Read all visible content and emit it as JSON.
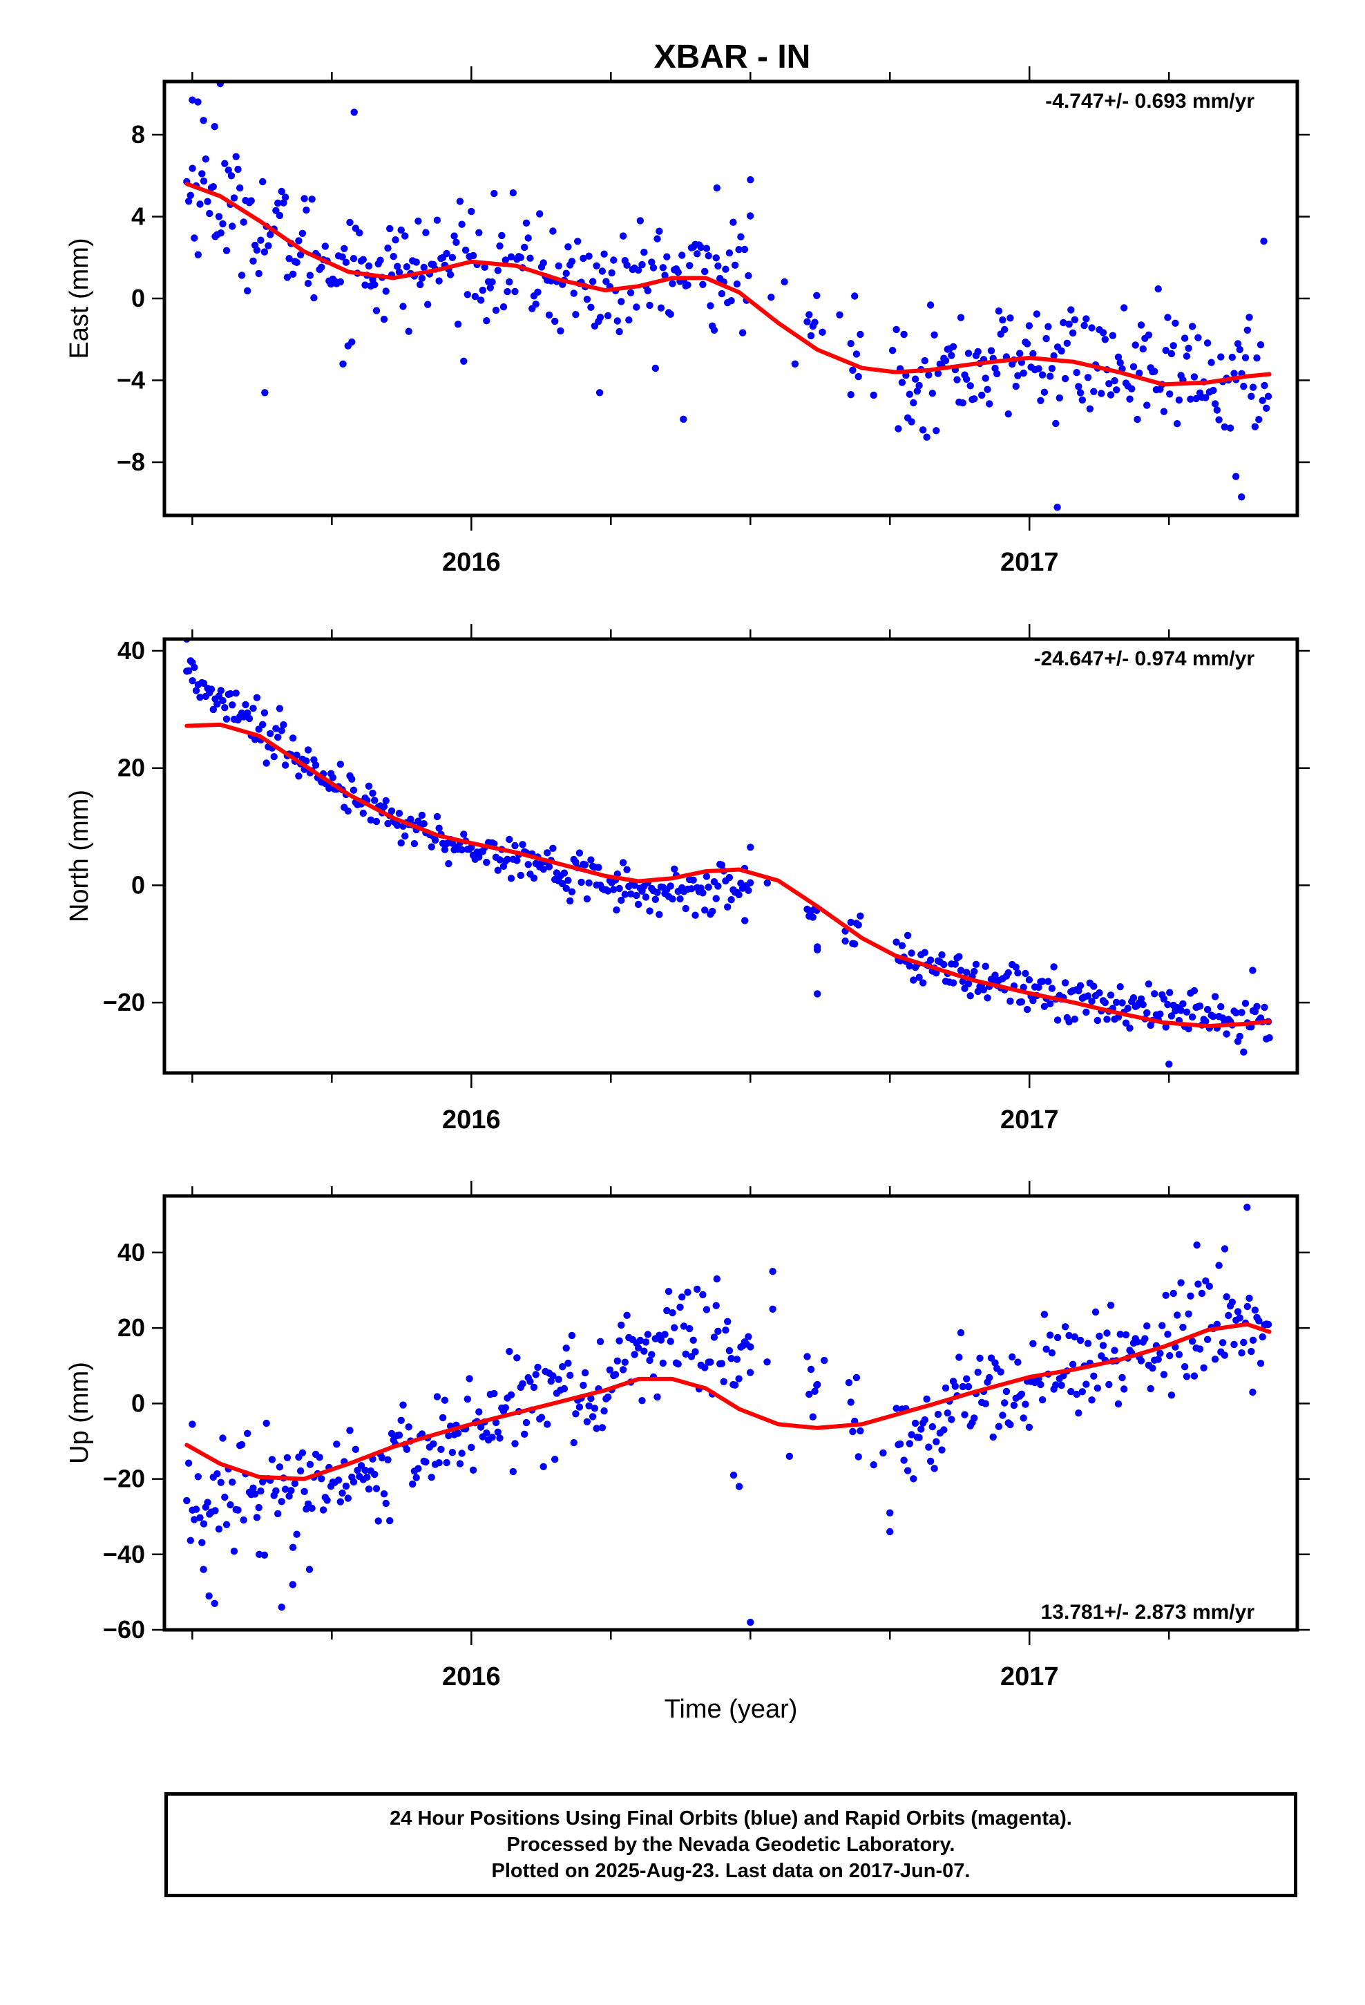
{
  "title": "XBAR - IN",
  "xlabel": "Time (year)",
  "colors": {
    "points": "#0000ff",
    "fit": "#ff0000",
    "frame": "#000000"
  },
  "x_ticks": [
    "2016",
    "2017"
  ],
  "chart_data": [
    {
      "type": "scatter",
      "ylabel": "East (mm)",
      "rate_label": "-4.747+/- 0.693 mm/yr",
      "ylim": [
        -10.6,
        10.6
      ],
      "xlim": [
        2015.45,
        2017.48
      ],
      "yticks": [
        -8,
        -4,
        0,
        4,
        8
      ],
      "ytick_labels": [
        "−8",
        "−4",
        "0",
        "4",
        "8"
      ],
      "x_ticks_years": [
        2016,
        2017
      ],
      "fit": {
        "x": [
          2015.49,
          2015.55,
          2015.62,
          2015.7,
          2015.78,
          2015.86,
          2015.94,
          2016.0,
          2016.08,
          2016.16,
          2016.24,
          2016.3,
          2016.36,
          2016.42,
          2016.48,
          2016.55,
          2016.62,
          2016.7,
          2016.76,
          2016.82,
          2016.9,
          2017.0,
          2017.08,
          2017.16,
          2017.24,
          2017.32,
          2017.39,
          2017.43
        ],
        "y": [
          5.6,
          5.0,
          3.8,
          2.3,
          1.3,
          1.0,
          1.4,
          1.8,
          1.6,
          0.9,
          0.4,
          0.6,
          1.0,
          1.0,
          0.3,
          -1.2,
          -2.5,
          -3.4,
          -3.6,
          -3.5,
          -3.2,
          -2.9,
          -3.1,
          -3.6,
          -4.2,
          -4.1,
          -3.8,
          -3.7
        ]
      },
      "series": {
        "name": "Final Orbits",
        "baseline_x": [
          2015.49,
          2015.62,
          2015.75,
          2015.88,
          2016.0,
          2016.12,
          2016.24,
          2016.36,
          2016.45,
          2016.55,
          2016.65,
          2016.75,
          2016.85,
          2016.95,
          2017.05,
          2017.15,
          2017.25,
          2017.35,
          2017.43
        ],
        "baseline_y": [
          5.4,
          3.6,
          1.8,
          1.3,
          1.9,
          1.3,
          0.5,
          1.0,
          1.4,
          0.4,
          -1.8,
          -3.5,
          -3.6,
          -3.1,
          -2.9,
          -3.3,
          -3.8,
          -4.1,
          -3.8
        ],
        "spread": 1.4,
        "gaps": [
          [
            2016.5,
            2016.6
          ],
          [
            2016.62,
            2016.68
          ],
          [
            2016.7,
            2016.76
          ]
        ],
        "outliers": [
          [
            2015.5,
            9.7
          ],
          [
            2015.51,
            9.6
          ],
          [
            2015.52,
            8.7
          ],
          [
            2015.54,
            8.4
          ],
          [
            2015.55,
            10.5
          ],
          [
            2015.57,
            6.0
          ],
          [
            2015.63,
            -4.6
          ],
          [
            2015.77,
            -3.2
          ],
          [
            2015.79,
            9.1
          ],
          [
            2016.23,
            -4.6
          ],
          [
            2016.38,
            -5.9
          ],
          [
            2016.44,
            5.4
          ],
          [
            2016.5,
            5.8
          ],
          [
            2016.68,
            -4.7
          ],
          [
            2017.05,
            -10.2
          ],
          [
            2017.38,
            -9.7
          ],
          [
            2017.37,
            -8.7
          ],
          [
            2017.42,
            2.8
          ],
          [
            2016.58,
            -3.2
          ],
          [
            2016.66,
            -0.8
          ]
        ]
      }
    },
    {
      "type": "scatter",
      "ylabel": "North (mm)",
      "rate_label": "-24.647+/- 0.974 mm/yr",
      "ylim": [
        -32,
        42
      ],
      "xlim": [
        2015.45,
        2017.48
      ],
      "yticks": [
        -20,
        0,
        20,
        40
      ],
      "ytick_labels": [
        "−20",
        "0",
        "20",
        "40"
      ],
      "x_ticks_years": [
        2016,
        2017
      ],
      "fit": {
        "x": [
          2015.49,
          2015.55,
          2015.62,
          2015.7,
          2015.78,
          2015.86,
          2015.94,
          2016.0,
          2016.08,
          2016.16,
          2016.24,
          2016.3,
          2016.36,
          2016.42,
          2016.48,
          2016.55,
          2016.62,
          2016.7,
          2016.76,
          2016.82,
          2016.9,
          2017.0,
          2017.08,
          2017.16,
          2017.24,
          2017.32,
          2017.39,
          2017.43
        ],
        "y": [
          27.2,
          27.4,
          25.5,
          20.5,
          15.5,
          11.5,
          8.5,
          7.2,
          5.6,
          3.6,
          1.6,
          0.7,
          1.2,
          2.4,
          2.7,
          0.8,
          -3.6,
          -9.0,
          -12.0,
          -13.8,
          -16.2,
          -18.4,
          -20.0,
          -21.8,
          -23.4,
          -24.0,
          -23.6,
          -23.2
        ]
      },
      "series": {
        "name": "Final Orbits",
        "baseline_x": [
          2015.49,
          2015.55,
          2015.62,
          2015.7,
          2015.78,
          2015.86,
          2015.94,
          2016.0,
          2016.08,
          2016.16,
          2016.24,
          2016.3,
          2016.36,
          2016.42,
          2016.5,
          2016.75,
          2016.85,
          2016.95,
          2017.05,
          2017.15,
          2017.25,
          2017.35,
          2017.43
        ],
        "baseline_y": [
          36.0,
          32.5,
          27.5,
          20.5,
          15.5,
          11.5,
          8.5,
          6.8,
          4.6,
          2.4,
          0.6,
          -1.2,
          -1.5,
          -1.0,
          -1.0,
          -10.5,
          -14.0,
          -16.8,
          -19.0,
          -20.4,
          -21.3,
          -22.4,
          -23.0
        ],
        "spread": 1.9,
        "gaps": [
          [
            2016.5,
            2016.6
          ],
          [
            2016.62,
            2016.68
          ],
          [
            2016.7,
            2016.76
          ]
        ],
        "outliers": [
          [
            2015.49,
            42.0
          ],
          [
            2015.5,
            38.0
          ],
          [
            2016.5,
            6.5
          ],
          [
            2016.49,
            -6.0
          ],
          [
            2016.62,
            -10.5
          ],
          [
            2016.62,
            -18.5
          ],
          [
            2016.62,
            -11.0
          ],
          [
            2016.67,
            -7.8
          ],
          [
            2016.67,
            -9.5
          ],
          [
            2017.25,
            -30.5
          ],
          [
            2017.4,
            -14.5
          ],
          [
            2017.43,
            -26.0
          ],
          [
            2016.26,
            -4.2
          ]
        ]
      }
    },
    {
      "type": "scatter",
      "ylabel": "Up (mm)",
      "rate_label": "13.781+/- 2.873 mm/yr",
      "ylim": [
        -60,
        55
      ],
      "xlim": [
        2015.45,
        2017.48
      ],
      "yticks": [
        -60,
        -40,
        -20,
        0,
        20,
        40
      ],
      "ytick_labels": [
        "−60",
        "−40",
        "−20",
        "0",
        "20",
        "40"
      ],
      "x_ticks_years": [
        2016,
        2017
      ],
      "fit": {
        "x": [
          2015.49,
          2015.55,
          2015.62,
          2015.7,
          2015.78,
          2015.86,
          2015.94,
          2016.0,
          2016.08,
          2016.16,
          2016.24,
          2016.3,
          2016.36,
          2016.42,
          2016.48,
          2016.55,
          2016.62,
          2016.7,
          2016.76,
          2016.82,
          2016.9,
          2017.0,
          2017.08,
          2017.16,
          2017.24,
          2017.32,
          2017.39,
          2017.43
        ],
        "y": [
          -11.0,
          -16.0,
          -19.5,
          -20.0,
          -16.0,
          -11.5,
          -8.0,
          -5.5,
          -2.5,
          0.5,
          3.5,
          6.5,
          6.5,
          4.0,
          -1.5,
          -5.5,
          -6.5,
          -5.5,
          -3.0,
          -0.5,
          3.0,
          7.0,
          9.0,
          11.5,
          15.0,
          19.5,
          21.0,
          19.0
        ]
      },
      "series": {
        "name": "Final Orbits",
        "baseline_x": [
          2015.49,
          2015.55,
          2015.62,
          2015.7,
          2015.78,
          2015.86,
          2015.94,
          2016.0,
          2016.08,
          2016.16,
          2016.24,
          2016.3,
          2016.36,
          2016.42,
          2016.5,
          2016.75,
          2016.85,
          2016.95,
          2017.05,
          2017.15,
          2017.25,
          2017.35,
          2017.43
        ],
        "baseline_y": [
          -28.0,
          -27.0,
          -25.0,
          -22.0,
          -20.0,
          -15.0,
          -10.0,
          -6.5,
          -2.0,
          1.0,
          5.0,
          12.0,
          20.0,
          14.0,
          10.0,
          -10.0,
          -5.0,
          3.0,
          10.0,
          12.0,
          15.0,
          25.0,
          22.0
        ],
        "spread": 7.0,
        "gaps": [
          [
            2016.5,
            2016.6
          ],
          [
            2016.62,
            2016.68
          ],
          [
            2016.7,
            2016.76
          ]
        ],
        "outliers": [
          [
            2015.5,
            -5.5
          ],
          [
            2015.52,
            -44.0
          ],
          [
            2015.53,
            -51.0
          ],
          [
            2015.54,
            -53.0
          ],
          [
            2015.62,
            -40.0
          ],
          [
            2015.66,
            -54.0
          ],
          [
            2015.71,
            -44.0
          ],
          [
            2015.68,
            -48.0
          ],
          [
            2016.44,
            33.0
          ],
          [
            2016.54,
            35.0
          ],
          [
            2016.54,
            25.0
          ],
          [
            2016.53,
            11.0
          ],
          [
            2016.57,
            -14.0
          ],
          [
            2016.62,
            5.0
          ],
          [
            2016.5,
            -58.0
          ],
          [
            2016.48,
            -22.0
          ],
          [
            2016.47,
            -19.0
          ],
          [
            2016.5,
            15.0
          ],
          [
            2016.75,
            -34.0
          ],
          [
            2016.75,
            -29.0
          ],
          [
            2017.39,
            52.0
          ],
          [
            2017.35,
            41.0
          ],
          [
            2017.4,
            3.0
          ],
          [
            2017.3,
            42.0
          ]
        ]
      }
    }
  ],
  "footer": {
    "line1": "24 Hour Positions Using Final Orbits (blue) and Rapid Orbits (magenta).",
    "line2": "Processed by the Nevada Geodetic Laboratory.",
    "line3": "Plotted on 2025-Aug-23. Last data on 2017-Jun-07."
  }
}
